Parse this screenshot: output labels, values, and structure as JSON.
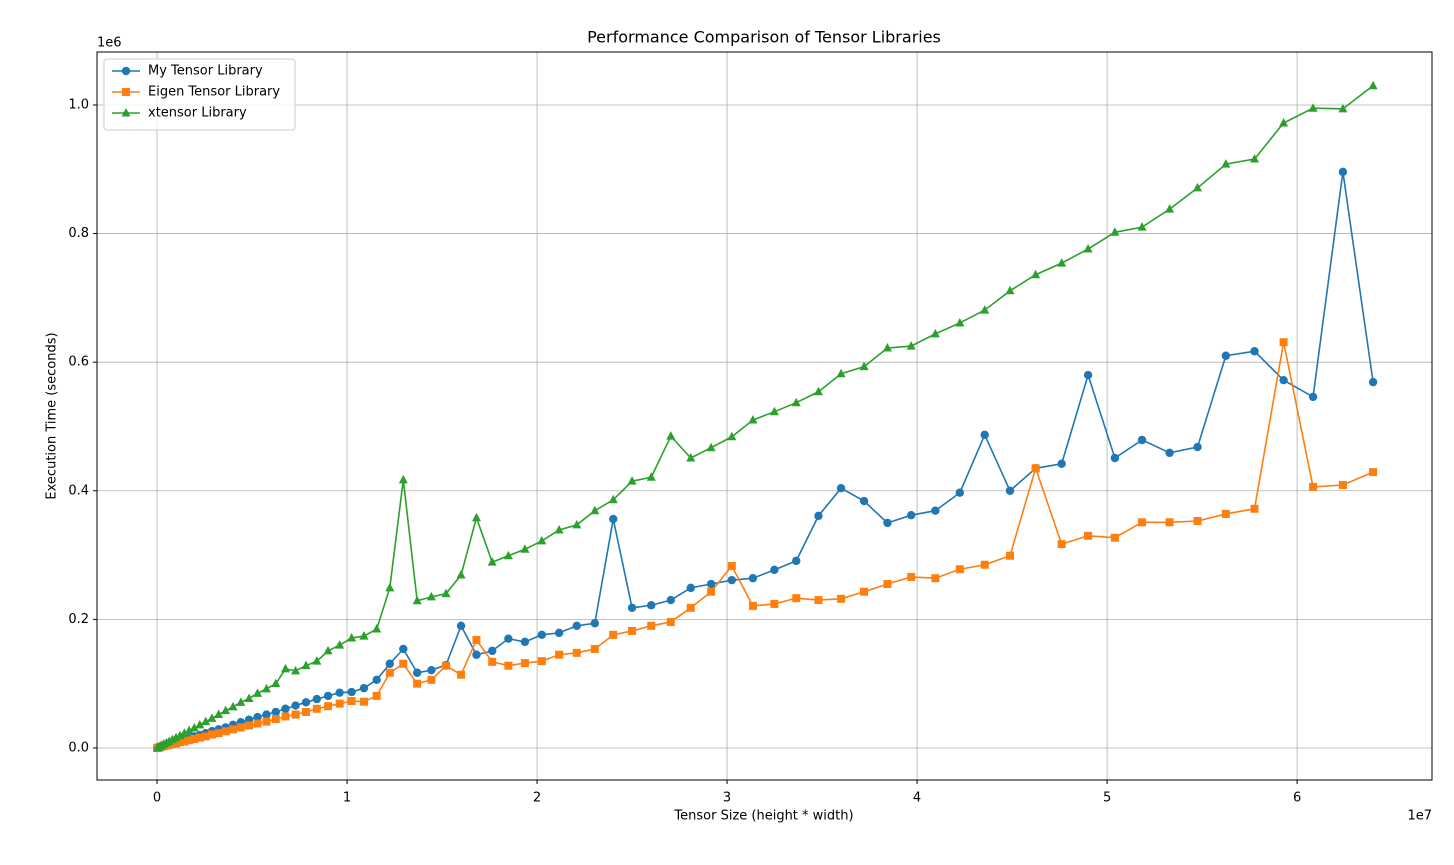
{
  "chart_data": {
    "type": "line",
    "title": "Performance Comparison of Tensor Libraries",
    "xlabel": "Tensor Size (height * width)",
    "ylabel": "Execution Time (seconds)",
    "xscale_label": "1e7",
    "yscale_label": "1e6",
    "x": [
      0.001,
      0.004,
      0.009,
      0.016,
      0.025,
      0.036,
      0.049,
      0.064,
      0.081,
      0.1,
      0.121,
      0.144,
      0.169,
      0.196,
      0.225,
      0.256,
      0.289,
      0.324,
      0.361,
      0.4,
      0.441,
      0.484,
      0.529,
      0.576,
      0.625,
      0.676,
      0.729,
      0.784,
      0.841,
      0.9,
      0.961,
      1.024,
      1.089,
      1.156,
      1.225,
      1.296,
      1.369,
      1.444,
      1.521,
      1.6,
      1.681,
      1.764,
      1.849,
      1.936,
      2.025,
      2.116,
      2.209,
      2.304,
      2.401,
      2.5,
      2.601,
      2.704,
      2.809,
      2.916,
      3.025,
      3.136,
      3.249,
      3.364,
      3.481,
      3.6,
      3.721,
      3.844,
      3.969,
      4.096,
      4.225,
      4.356,
      4.489,
      4.624,
      4.761,
      4.9,
      5.041,
      5.184,
      5.329,
      5.476,
      5.625,
      5.776,
      5.929,
      6.084,
      6.241,
      6.4
    ],
    "series": [
      {
        "name": "My Tensor Library",
        "color": "#1f77b4",
        "marker": "circle",
        "values": [
          0.0,
          0.0,
          0.001,
          0.001,
          0.002,
          0.003,
          0.004,
          0.006,
          0.007,
          0.009,
          0.011,
          0.013,
          0.015,
          0.018,
          0.02,
          0.023,
          0.026,
          0.029,
          0.032,
          0.036,
          0.04,
          0.044,
          0.048,
          0.052,
          0.056,
          0.061,
          0.066,
          0.071,
          0.076,
          0.081,
          0.086,
          0.087,
          0.093,
          0.106,
          0.131,
          0.154,
          0.117,
          0.121,
          0.129,
          0.19,
          0.145,
          0.151,
          0.17,
          0.165,
          0.176,
          0.179,
          0.19,
          0.194,
          0.356,
          0.218,
          0.222,
          0.23,
          0.249,
          0.255,
          0.261,
          0.264,
          0.277,
          0.291,
          0.361,
          0.404,
          0.384,
          0.35,
          0.362,
          0.369,
          0.397,
          0.487,
          0.4,
          0.435,
          0.442,
          0.58,
          0.451,
          0.479,
          0.459,
          0.468,
          0.61,
          0.617,
          0.572,
          0.546,
          0.896,
          0.569
        ]
      },
      {
        "name": "Eigen Tensor Library",
        "color": "#ff7f0e",
        "marker": "square",
        "values": [
          0.0,
          0.0,
          0.001,
          0.001,
          0.002,
          0.003,
          0.004,
          0.005,
          0.006,
          0.007,
          0.009,
          0.01,
          0.012,
          0.014,
          0.016,
          0.018,
          0.021,
          0.023,
          0.026,
          0.029,
          0.032,
          0.035,
          0.038,
          0.041,
          0.045,
          0.049,
          0.052,
          0.056,
          0.061,
          0.065,
          0.069,
          0.073,
          0.072,
          0.081,
          0.117,
          0.131,
          0.1,
          0.106,
          0.128,
          0.114,
          0.168,
          0.134,
          0.128,
          0.132,
          0.135,
          0.145,
          0.148,
          0.154,
          0.176,
          0.182,
          0.19,
          0.196,
          0.218,
          0.243,
          0.283,
          0.221,
          0.224,
          0.233,
          0.23,
          0.232,
          0.243,
          0.255,
          0.266,
          0.264,
          0.278,
          0.285,
          0.299,
          0.435,
          0.317,
          0.33,
          0.327,
          0.351,
          0.351,
          0.353,
          0.364,
          0.372,
          0.631,
          0.406,
          0.409,
          0.429
        ]
      },
      {
        "name": "xtensor Library",
        "color": "#2ca02c",
        "marker": "triangle",
        "values": [
          0.0,
          0.001,
          0.001,
          0.003,
          0.004,
          0.006,
          0.008,
          0.01,
          0.013,
          0.016,
          0.019,
          0.023,
          0.027,
          0.031,
          0.036,
          0.041,
          0.046,
          0.052,
          0.058,
          0.064,
          0.071,
          0.077,
          0.085,
          0.092,
          0.1,
          0.123,
          0.12,
          0.128,
          0.135,
          0.151,
          0.16,
          0.171,
          0.174,
          0.185,
          0.249,
          0.417,
          0.229,
          0.235,
          0.24,
          0.269,
          0.358,
          0.289,
          0.299,
          0.309,
          0.322,
          0.339,
          0.347,
          0.369,
          0.386,
          0.415,
          0.421,
          0.485,
          0.451,
          0.467,
          0.484,
          0.51,
          0.523,
          0.537,
          0.554,
          0.582,
          0.593,
          0.622,
          0.625,
          0.644,
          0.661,
          0.681,
          0.711,
          0.736,
          0.754,
          0.776,
          0.802,
          0.81,
          0.838,
          0.871,
          0.908,
          0.916,
          0.972,
          0.995,
          0.994,
          1.03
        ]
      }
    ],
    "xlim": [
      -0.316,
      6.71
    ],
    "ylim": [
      -0.0498,
      1.0824
    ],
    "xticks": [
      0,
      1,
      2,
      3,
      4,
      5,
      6
    ],
    "yticks": [
      {
        "value": 0,
        "label": "0.0"
      },
      {
        "value": 0.2,
        "label": "0.2"
      },
      {
        "value": 0.4,
        "label": "0.4"
      },
      {
        "value": 0.6,
        "label": "0.6"
      },
      {
        "value": 0.8,
        "label": "0.8"
      },
      {
        "value": 1.0,
        "label": "1.0"
      }
    ],
    "grid": true,
    "legend": "upper-left"
  }
}
